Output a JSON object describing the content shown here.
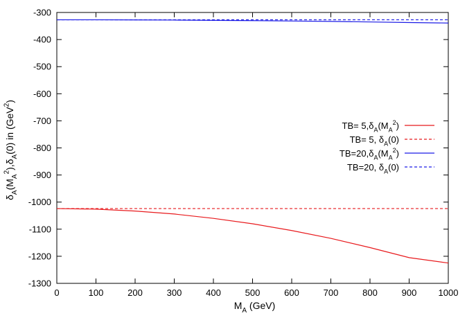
{
  "chart_data": {
    "type": "line",
    "xlabel_parts": [
      "M",
      "A",
      " (GeV)"
    ],
    "ylabel_parts": [
      "δ",
      "A",
      "(M",
      "A",
      "2",
      "),δ",
      "A",
      "(0) in (GeV",
      "2",
      ")"
    ],
    "xlim": [
      0,
      1000
    ],
    "ylim": [
      -1300,
      -300
    ],
    "xticks": [
      0,
      100,
      200,
      300,
      400,
      500,
      600,
      700,
      800,
      900,
      1000
    ],
    "yticks": [
      -1300,
      -1200,
      -1100,
      -1000,
      -900,
      -800,
      -700,
      -600,
      -500,
      -400,
      -300
    ],
    "grid": false,
    "legend_position": "right-middle",
    "series": [
      {
        "legend_parts": [
          "TB= 5,δ",
          "A",
          "(M",
          "A",
          "2",
          ")"
        ],
        "color": "#e8191c",
        "dash": "solid",
        "x": [
          0,
          100,
          200,
          300,
          400,
          500,
          600,
          700,
          800,
          900,
          1000
        ],
        "y": [
          -1024,
          -1026,
          -1033,
          -1044,
          -1060,
          -1080,
          -1105,
          -1134,
          -1168,
          -1205,
          -1225
        ]
      },
      {
        "legend_parts": [
          "TB= 5, δ",
          "A",
          "(0)"
        ],
        "color": "#e8191c",
        "dash": "dashed",
        "x": [
          0,
          1000
        ],
        "y": [
          -1024,
          -1024
        ]
      },
      {
        "legend_parts": [
          "TB=20,δ",
          "A",
          "(M",
          "A",
          "2",
          ")"
        ],
        "color": "#1a1ae6",
        "dash": "solid",
        "x": [
          0,
          100,
          200,
          300,
          400,
          500,
          600,
          700,
          800,
          900,
          1000
        ],
        "y": [
          -327,
          -327,
          -327.5,
          -328,
          -329,
          -330,
          -331.5,
          -333,
          -335,
          -337,
          -339
        ]
      },
      {
        "legend_parts": [
          "TB=20, δ",
          "A",
          "(0)"
        ],
        "color": "#1a1ae6",
        "dash": "dashed",
        "x": [
          0,
          1000
        ],
        "y": [
          -327,
          -327
        ]
      }
    ]
  }
}
